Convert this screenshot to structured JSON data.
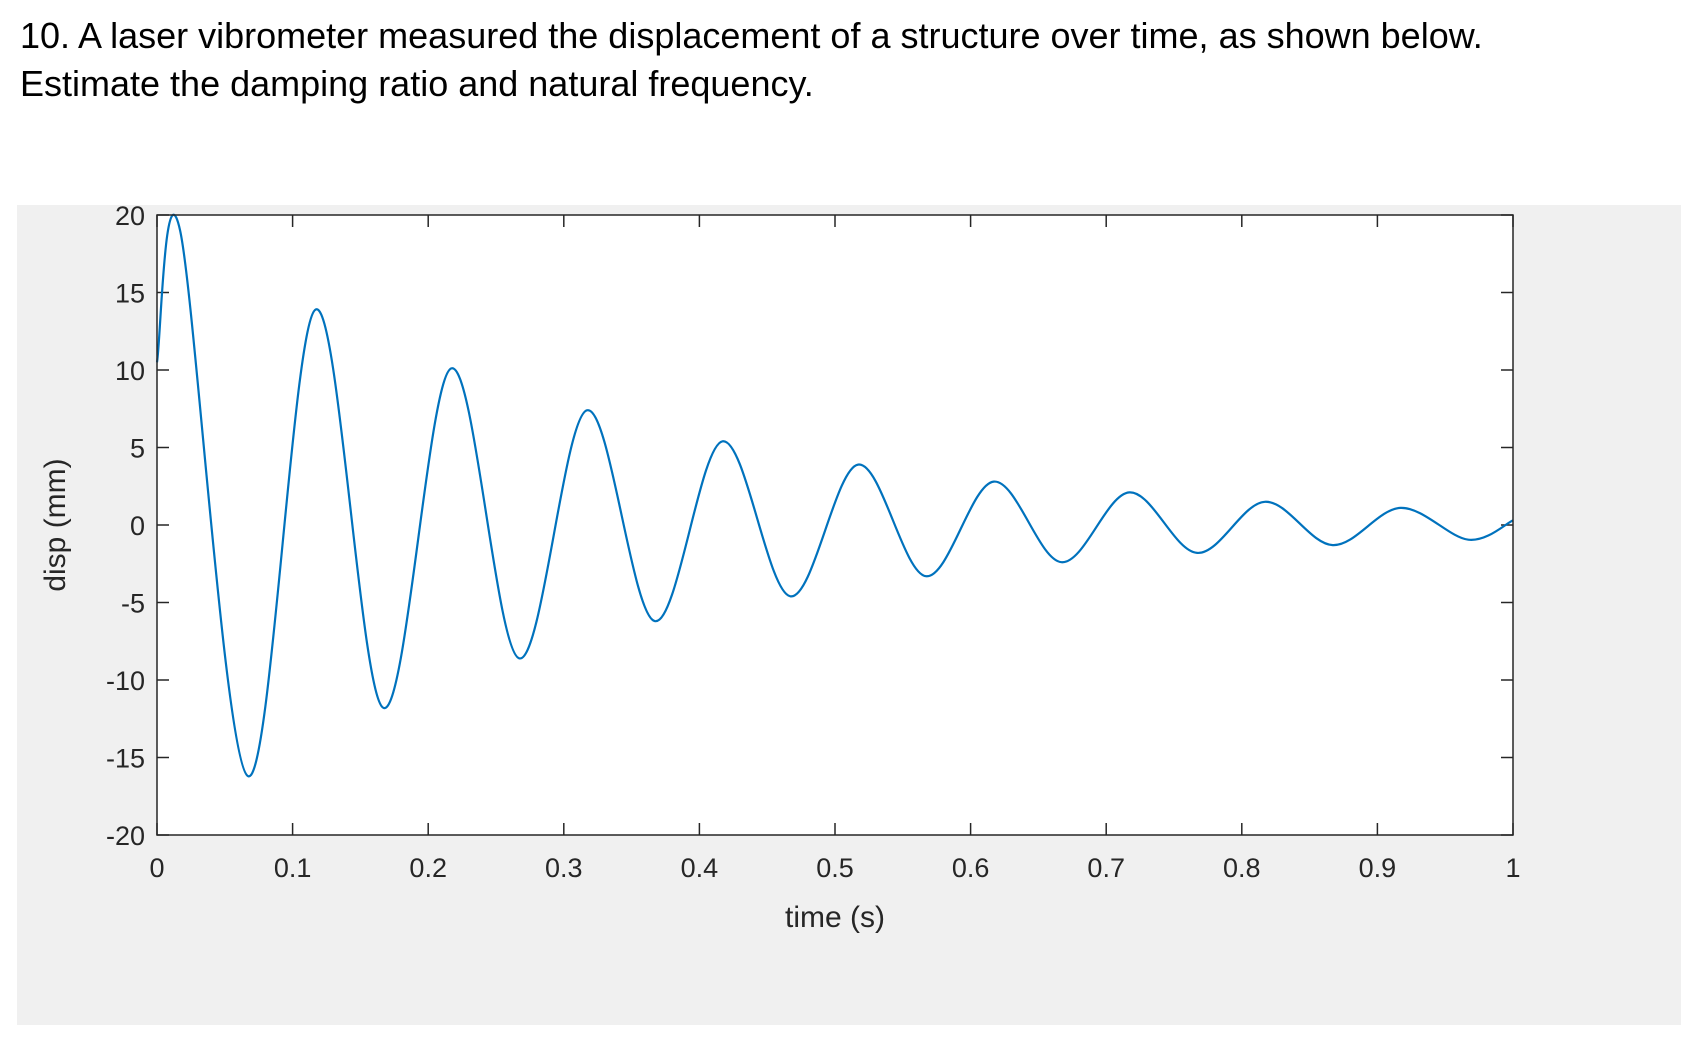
{
  "question": {
    "line1": "10. A laser vibrometer measured the displacement of a structure over time, as shown below.",
    "line2": "Estimate the damping ratio and natural frequency."
  },
  "chart_data": {
    "type": "line",
    "title": "",
    "xlabel": "time (s)",
    "ylabel": "disp (mm)",
    "xlim": [
      0,
      1
    ],
    "ylim": [
      -20,
      20
    ],
    "xticks": [
      0,
      0.1,
      0.2,
      0.3,
      0.4,
      0.5,
      0.6,
      0.7,
      0.8,
      0.9,
      1
    ],
    "xtick_labels": [
      "0",
      "0.1",
      "0.2",
      "0.3",
      "0.4",
      "0.5",
      "0.6",
      "0.7",
      "0.8",
      "0.9",
      "1"
    ],
    "yticks": [
      20,
      15,
      10,
      5,
      0,
      -5,
      -10,
      -15,
      -20
    ],
    "ytick_labels": [
      "20",
      "15",
      "10",
      "5",
      "0",
      "-5",
      "-10",
      "-15",
      "-20"
    ],
    "grid": false,
    "line_color": "#0072bd",
    "series": [
      {
        "name": "",
        "x": [
          0,
          0.017,
          0.067,
          0.117,
          0.167,
          0.217,
          0.267,
          0.317,
          0.367,
          0.417,
          0.467,
          0.517,
          0.567,
          0.617,
          0.667,
          0.717,
          0.767,
          0.817,
          0.867,
          0.917,
          0.967,
          1.0
        ],
        "y": [
          10.5,
          19.0,
          -16.2,
          13.9,
          -11.8,
          10.1,
          -8.6,
          7.4,
          -6.2,
          5.4,
          -4.6,
          3.9,
          -3.3,
          2.8,
          -2.4,
          2.1,
          -1.8,
          1.5,
          -1.3,
          1.1,
          -0.95,
          0.3
        ]
      }
    ]
  }
}
